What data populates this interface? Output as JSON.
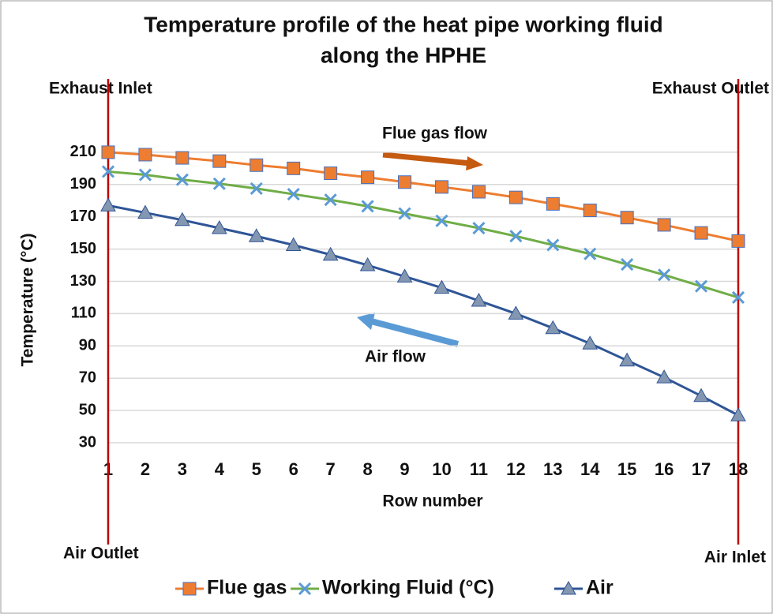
{
  "chart_data": {
    "type": "line",
    "title": [
      "Temperature profile of the heat pipe working fluid",
      "along the HPHE"
    ],
    "x_label": "Row number",
    "y_label": "Temperature (°C)",
    "x": [
      1,
      2,
      3,
      4,
      5,
      6,
      7,
      8,
      9,
      10,
      11,
      12,
      13,
      14,
      15,
      16,
      17,
      18
    ],
    "xlim": [
      1,
      18
    ],
    "xticks": [
      1,
      2,
      3,
      4,
      5,
      6,
      7,
      8,
      9,
      10,
      11,
      12,
      13,
      14,
      15,
      16,
      17,
      18
    ],
    "ylim": [
      30,
      220
    ],
    "yticks": [
      30,
      50,
      70,
      90,
      110,
      130,
      150,
      170,
      190,
      210
    ],
    "grid": true,
    "series": [
      {
        "name": "Flue gas",
        "color": "#ed7d31",
        "marker": "square",
        "marker_color": "#ed7d31",
        "values": [
          210,
          208.5,
          206.5,
          204.5,
          202,
          200,
          197,
          194.5,
          191.5,
          188.5,
          185.5,
          182,
          178,
          174,
          169.5,
          165,
          160,
          155
        ]
      },
      {
        "name": "Working Fluid (°C)",
        "color": "#70ad47",
        "marker": "x",
        "marker_color": "#5b9bd5",
        "values": [
          198,
          196,
          193,
          190.5,
          187.5,
          184,
          180.5,
          176.5,
          172,
          167.5,
          163,
          158,
          152.5,
          147,
          140.5,
          134,
          127,
          120
        ]
      },
      {
        "name": "Air",
        "color": "#2f5597",
        "marker": "triangle",
        "marker_color": "#8497b0",
        "values": [
          177,
          172.5,
          168,
          163,
          158,
          152.5,
          146.5,
          140,
          133,
          126,
          118,
          110,
          101,
          91.5,
          81,
          70.5,
          59,
          47
        ]
      }
    ],
    "annotations": [
      "Exhaust Inlet",
      "Exhaust Outlet",
      "Air Outlet",
      "Air Inlet",
      "Flue gas flow",
      "Air flow"
    ],
    "legend": "bottom"
  }
}
